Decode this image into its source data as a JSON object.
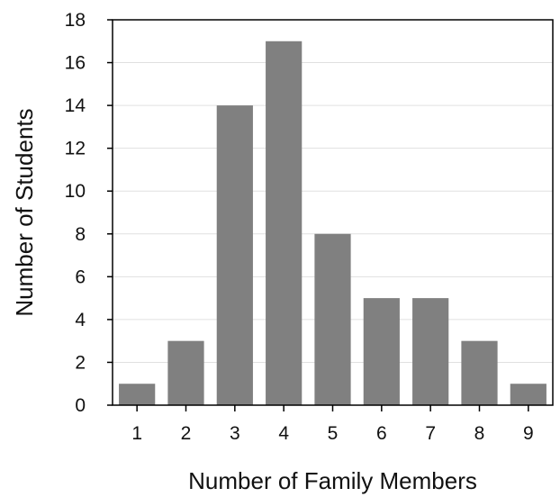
{
  "chart_data": {
    "type": "bar",
    "title": "",
    "xlabel": "Number of Family Members",
    "ylabel": "Number of Students",
    "categories": [
      "1",
      "2",
      "3",
      "4",
      "5",
      "6",
      "7",
      "8",
      "9"
    ],
    "values": [
      1,
      3,
      14,
      17,
      8,
      5,
      5,
      3,
      1
    ],
    "ylim": [
      0,
      18
    ],
    "yticks": [
      "0",
      "2",
      "4",
      "6",
      "8",
      "10",
      "12",
      "14",
      "16",
      "18"
    ],
    "grid": true,
    "legend": "none",
    "colors": {
      "bar": "#808080",
      "grid": "#e0e0e0",
      "axis": "#000000"
    }
  }
}
